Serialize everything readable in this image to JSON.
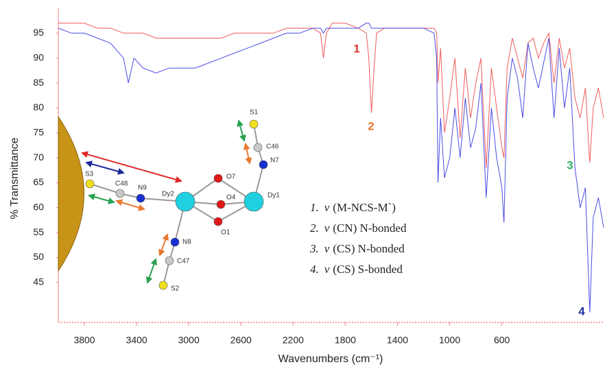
{
  "chart_data": {
    "type": "line",
    "ylabel": "% Transmittance",
    "xlabel": "Wavenumbers (cm⁻¹)",
    "xlim": [
      4000,
      -180
    ],
    "ylim": [
      37,
      100
    ],
    "xticks": [
      3800,
      3400,
      3000,
      2600,
      2200,
      1800,
      1400,
      1000,
      600
    ],
    "yticks": [
      45,
      50,
      55,
      60,
      65,
      70,
      75,
      80,
      85,
      90,
      95
    ],
    "axis_color": "#f08080",
    "x": [
      4000,
      3900,
      3800,
      3700,
      3600,
      3500,
      3463,
      3420,
      3350,
      3250,
      3150,
      3050,
      2950,
      2850,
      2750,
      2650,
      2550,
      2450,
      2350,
      2250,
      2150,
      2050,
      1990,
      1968,
      1945,
      1900,
      1800,
      1700,
      1640,
      1620,
      1600,
      1580,
      1560,
      1500,
      1400,
      1300,
      1200,
      1120,
      1100,
      1090,
      1070,
      1040,
      1000,
      960,
      920,
      880,
      840,
      800,
      760,
      720,
      680,
      640,
      600,
      584,
      560,
      520,
      480,
      440,
      400,
      360,
      320,
      280,
      240,
      200,
      160,
      120,
      80,
      40,
      0,
      -40,
      -74,
      -100,
      -140,
      -180
    ],
    "series": [
      {
        "color": "#f05a5a",
        "values": [
          97,
          97,
          97,
          96,
          96,
          95,
          95,
          95,
          95,
          94,
          94,
          94,
          94,
          94,
          94,
          95,
          95,
          95,
          95,
          96,
          96,
          96,
          95,
          90,
          95,
          97,
          97,
          96,
          95,
          90,
          79,
          88,
          95,
          96,
          96,
          96,
          96,
          96,
          95,
          85,
          92,
          75,
          82,
          90,
          74,
          88,
          78,
          85,
          90,
          68,
          88,
          80,
          72,
          70,
          88,
          94,
          90,
          86,
          93,
          94,
          90,
          93,
          95,
          85,
          94,
          88,
          92,
          82,
          78,
          84,
          69,
          80,
          84,
          78
        ]
      },
      {
        "color": "#4a4ae6",
        "values": [
          96,
          95,
          95,
          94,
          93,
          90,
          85,
          90,
          88,
          87,
          88,
          88,
          88,
          89,
          90,
          91,
          92,
          93,
          94,
          95,
          95,
          96,
          96,
          95,
          96,
          96,
          96,
          96,
          97,
          97,
          96,
          96,
          96,
          96,
          96,
          96,
          96,
          95,
          90,
          65,
          78,
          66,
          70,
          80,
          70,
          82,
          72,
          76,
          85,
          62,
          80,
          70,
          64,
          57,
          82,
          90,
          86,
          78,
          93,
          88,
          84,
          89,
          94,
          78,
          92,
          80,
          88,
          68,
          60,
          64,
          39,
          58,
          62,
          56
        ]
      }
    ],
    "annotations": [
      {
        "text": "1",
        "color": "#e03030"
      },
      {
        "text": "2",
        "color": "#e87830"
      },
      {
        "text": "3",
        "color": "#30b060"
      },
      {
        "text": "4",
        "color": "#2030a0"
      }
    ],
    "legend_items": [
      {
        "number": "1.",
        "symbol": "v",
        "label": "(M-NCS-M`)"
      },
      {
        "number": "2.",
        "symbol": "v",
        "label": "(CN) N-bonded"
      },
      {
        "number": "3.",
        "symbol": "v",
        "label": "(CS) N-bonded"
      },
      {
        "number": "4.",
        "symbol": "v",
        "label": "(CS) S-bonded"
      }
    ],
    "inset_labels": [
      "S3",
      "C48",
      "N9",
      "Dy2",
      "O7",
      "O4",
      "O1",
      "Dy1",
      "N7",
      "C46",
      "S1",
      "N8",
      "C47",
      "S2"
    ]
  }
}
